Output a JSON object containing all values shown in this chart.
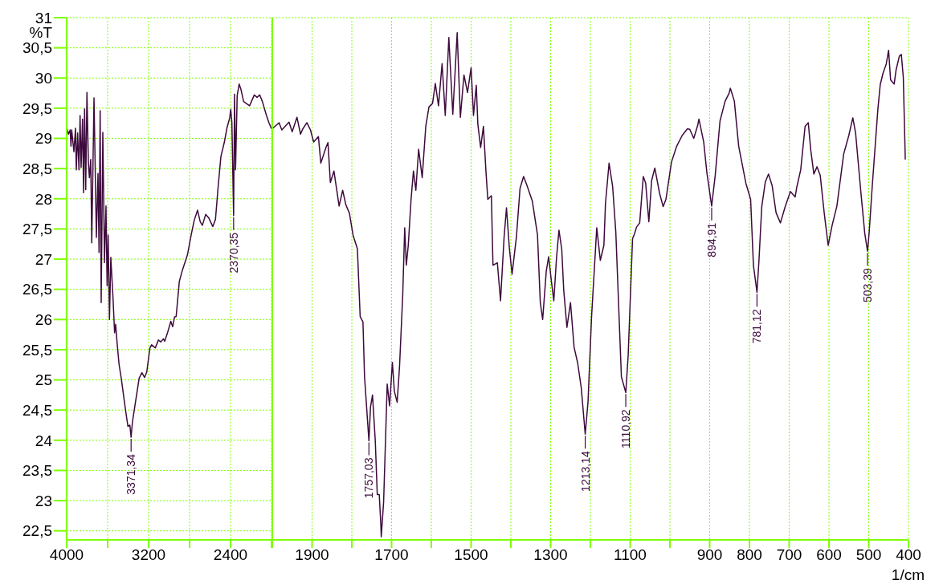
{
  "chart_data": [
    {
      "type": "line",
      "ylabel": "%T",
      "color": "#3d0a3c",
      "grid": true,
      "marker": "none",
      "line_style": "solid",
      "xlim": [
        4000,
        2000
      ],
      "ylim": [
        22.35,
        31
      ],
      "xticks": [
        4000,
        {
          "value": 3600,
          "label": null
        },
        3200,
        {
          "value": 2800,
          "label": null
        },
        2400,
        {
          "value": 2000,
          "label": null
        }
      ],
      "yticks": [
        {
          "value": 22.5,
          "label": "22,5"
        },
        23,
        {
          "value": 23.5,
          "label": "23,5"
        },
        24,
        {
          "value": 24.5,
          "label": "24,5"
        },
        25,
        {
          "value": 25.5,
          "label": "25,5"
        },
        26,
        {
          "value": 26.5,
          "label": "26,5"
        },
        27,
        {
          "value": 27.5,
          "label": "27,5"
        },
        28,
        {
          "value": 28.5,
          "label": "28,5"
        },
        29,
        {
          "value": 29.5,
          "label": "29,5"
        },
        30,
        {
          "value": 30.5,
          "label": "30,5"
        },
        31
      ],
      "x": [
        4000,
        3982,
        3966,
        3958,
        3951,
        3929,
        3914,
        3906,
        3893,
        3880,
        3869,
        3859,
        3845,
        3835,
        3825,
        3814,
        3802,
        3788,
        3778,
        3765,
        3755,
        3733,
        3710,
        3694,
        3684,
        3673,
        3663,
        3647,
        3631,
        3616,
        3605,
        3595,
        3582,
        3569,
        3547,
        3532,
        3522,
        3506,
        3488,
        3469,
        3449,
        3427,
        3402,
        3383,
        3371,
        3358,
        3331,
        3292,
        3265,
        3239,
        3218,
        3187,
        3171,
        3135,
        3104,
        3082,
        3056,
        3043,
        3017,
        2983,
        2965,
        2947,
        2931,
        2900,
        2873,
        2821,
        2782,
        2755,
        2722,
        2696,
        2675,
        2643,
        2612,
        2573,
        2547,
        2520,
        2494,
        2460,
        2434,
        2408,
        2398,
        2387,
        2370,
        2361,
        2351,
        2335,
        2316,
        2298,
        2272,
        2214,
        2168,
        2141,
        2115,
        2089,
        2049,
        2023,
        2000
      ],
      "values": [
        29.18,
        29.07,
        29.14,
        28.87,
        29.14,
        28.78,
        29.17,
        28.48,
        29.09,
        28.48,
        29.38,
        28.52,
        29.32,
        28.1,
        29.49,
        28.15,
        29.76,
        28.6,
        28.35,
        28.65,
        27.27,
        29.67,
        27.36,
        28.42,
        27.11,
        29.46,
        26.28,
        29.1,
        26.94,
        27.88,
        26.56,
        27.4,
        26.0,
        27.03,
        26.34,
        25.78,
        25.92,
        25.58,
        25.25,
        25.05,
        24.8,
        24.52,
        24.23,
        24.25,
        24.05,
        24.3,
        24.6,
        25.03,
        25.12,
        25.04,
        25.13,
        25.53,
        25.58,
        25.53,
        25.66,
        25.63,
        25.68,
        25.64,
        25.77,
        25.97,
        25.88,
        26.04,
        26.05,
        26.63,
        26.8,
        27.07,
        27.42,
        27.64,
        27.81,
        27.62,
        27.56,
        27.74,
        27.68,
        27.54,
        27.66,
        28.22,
        28.7,
        28.94,
        29.18,
        29.34,
        29.48,
        29.27,
        27.72,
        29.73,
        28.48,
        29.71,
        29.9,
        29.81,
        29.61,
        29.54,
        29.72,
        29.68,
        29.72,
        29.61,
        29.38,
        29.25,
        29.16
      ],
      "annotations": [
        {
          "text": "3371,34",
          "x": 3371,
          "y": 24.05
        },
        {
          "text": "2370,35",
          "x": 2370,
          "y": 27.72
        }
      ]
    },
    {
      "type": "line",
      "xlabel": "1/cm",
      "color": "#3d0a3c",
      "grid": true,
      "marker": "none",
      "line_style": "solid",
      "tick_labels": "x",
      "xlim": [
        2000,
        400
      ],
      "ylim": [
        22.35,
        31
      ],
      "xticks": [
        {
          "value": 2000,
          "label": null
        },
        1900,
        {
          "value": 1800,
          "label": null
        },
        1700,
        {
          "value": 1600,
          "label": null
        },
        1500,
        {
          "value": 1400,
          "label": null
        },
        1300,
        {
          "value": 1200,
          "label": null
        },
        1100,
        {
          "value": 1000,
          "label": null
        },
        900,
        800,
        700,
        600,
        500,
        400
      ],
      "yticks": [
        22.5,
        23,
        23.5,
        24,
        24.5,
        25,
        25.5,
        26,
        26.5,
        27,
        27.5,
        28,
        28.5,
        29,
        29.5,
        30,
        30.5,
        31
      ],
      "x": [
        2000,
        1983,
        1976,
        1958,
        1950,
        1938,
        1929,
        1924,
        1913,
        1904,
        1896,
        1884,
        1878,
        1865,
        1860,
        1854,
        1845,
        1832,
        1823,
        1815,
        1806,
        1797,
        1786,
        1779,
        1772,
        1768,
        1757,
        1753,
        1748,
        1741,
        1736,
        1731,
        1727,
        1726,
        1720,
        1711,
        1705,
        1698,
        1693,
        1686,
        1680,
        1672,
        1667,
        1663,
        1658,
        1651,
        1645,
        1639,
        1632,
        1623,
        1614,
        1606,
        1597,
        1590,
        1582,
        1573,
        1565,
        1556,
        1546,
        1535,
        1527,
        1518,
        1509,
        1500,
        1494,
        1487,
        1483,
        1476,
        1469,
        1463,
        1458,
        1449,
        1445,
        1434,
        1426,
        1417,
        1411,
        1404,
        1397,
        1386,
        1377,
        1368,
        1360,
        1346,
        1333,
        1326,
        1320,
        1311,
        1305,
        1298,
        1292,
        1285,
        1279,
        1272,
        1267,
        1259,
        1250,
        1241,
        1232,
        1223,
        1213,
        1206,
        1197,
        1184,
        1175,
        1166,
        1162,
        1153,
        1144,
        1136,
        1122,
        1111,
        1105,
        1094,
        1089,
        1084,
        1076,
        1067,
        1061,
        1053,
        1046,
        1038,
        1026,
        1017,
        1010,
        996,
        983,
        969,
        956,
        950,
        940,
        930,
        927,
        915,
        907,
        895,
        886,
        874,
        861,
        851,
        848,
        838,
        827,
        809,
        797,
        790,
        781,
        776,
        769,
        760,
        752,
        743,
        733,
        722,
        710,
        697,
        685,
        681,
        671,
        660,
        652,
        646,
        638,
        630,
        622,
        612,
        602,
        592,
        580,
        563,
        550,
        540,
        533,
        520,
        510,
        503,
        499,
        491,
        477,
        471,
        464,
        456,
        450,
        445,
        436,
        431,
        423,
        418,
        413,
        408
      ],
      "values": [
        29.16,
        29.26,
        29.14,
        29.27,
        29.11,
        29.35,
        29.07,
        29.15,
        29.26,
        29.14,
        28.94,
        29.03,
        28.59,
        28.85,
        28.93,
        28.27,
        28.46,
        27.88,
        28.14,
        27.9,
        27.76,
        27.4,
        27.17,
        26.05,
        25.96,
        25.05,
        23.99,
        24.55,
        24.75,
        23.99,
        23.1,
        23.1,
        22.6,
        22.4,
        22.98,
        24.93,
        24.57,
        25.29,
        24.81,
        24.63,
        25.22,
        26.4,
        27.52,
        26.9,
        27.23,
        27.99,
        28.46,
        28.14,
        28.82,
        28.35,
        29.2,
        29.52,
        29.58,
        29.91,
        29.54,
        30.24,
        29.38,
        30.67,
        29.4,
        30.75,
        29.35,
        30.05,
        29.76,
        30.17,
        29.38,
        29.88,
        29.23,
        28.85,
        29.2,
        28.49,
        27.99,
        28.05,
        26.9,
        26.94,
        26.31,
        27.37,
        27.85,
        27.2,
        26.75,
        27.37,
        28.17,
        28.37,
        28.23,
        27.96,
        27.4,
        26.28,
        26.0,
        26.8,
        27.04,
        26.63,
        26.31,
        27.04,
        27.48,
        27.16,
        26.48,
        25.87,
        26.28,
        25.54,
        25.28,
        24.87,
        24.1,
        24.63,
        26.05,
        27.52,
        26.98,
        27.23,
        27.93,
        28.59,
        28.2,
        27.44,
        25.05,
        24.79,
        25.4,
        27.34,
        27.42,
        27.53,
        27.6,
        28.37,
        28.26,
        27.62,
        28.3,
        28.51,
        28.09,
        27.87,
        27.99,
        28.61,
        28.87,
        29.05,
        29.16,
        29.15,
        29.0,
        29.22,
        29.32,
        28.94,
        28.43,
        27.88,
        28.39,
        29.29,
        29.62,
        29.75,
        29.83,
        29.62,
        28.87,
        28.26,
        27.99,
        26.9,
        26.45,
        26.98,
        27.87,
        28.28,
        28.41,
        28.22,
        27.77,
        27.6,
        27.87,
        28.12,
        28.03,
        28.19,
        28.48,
        29.2,
        29.26,
        28.82,
        28.41,
        28.53,
        28.39,
        27.77,
        27.23,
        27.56,
        27.88,
        28.74,
        29.05,
        29.34,
        29.09,
        28.13,
        27.43,
        27.13,
        27.43,
        28.22,
        29.48,
        29.89,
        30.08,
        30.23,
        30.46,
        29.97,
        29.9,
        30.14,
        30.36,
        30.39,
        30.01,
        28.65
      ],
      "annotations": [
        {
          "text": "1757,03",
          "x": 1757,
          "y": 23.99
        },
        {
          "text": "1213,14",
          "x": 1213,
          "y": 24.1
        },
        {
          "text": "1110,92",
          "x": 1111,
          "y": 24.79
        },
        {
          "text": "894,91",
          "x": 895,
          "y": 27.88
        },
        {
          "text": "781,12",
          "x": 781,
          "y": 26.45
        },
        {
          "text": "503,39",
          "x": 503,
          "y": 27.13
        }
      ]
    }
  ]
}
